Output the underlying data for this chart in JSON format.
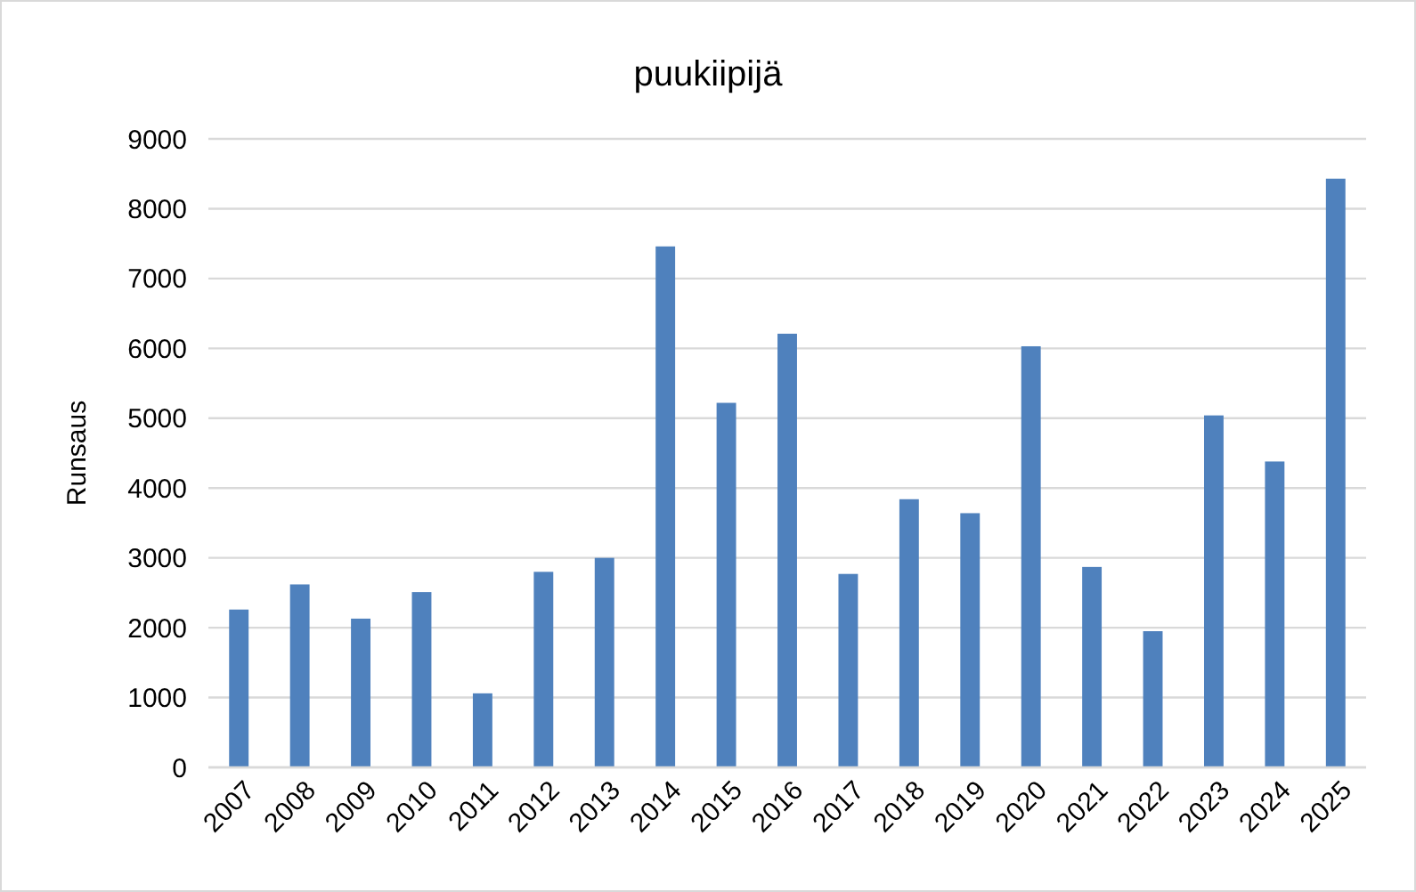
{
  "chart_data": {
    "type": "bar",
    "title": "puukiipijä",
    "ylabel": "Runsaus",
    "categories": [
      "2007",
      "2008",
      "2009",
      "2010",
      "2011",
      "2012",
      "2013",
      "2014",
      "2015",
      "2016",
      "2017",
      "2018",
      "2019",
      "2020",
      "2021",
      "2022",
      "2023",
      "2024",
      "2025"
    ],
    "values": [
      2260,
      2620,
      2130,
      2510,
      1060,
      2800,
      3000,
      7460,
      5220,
      6210,
      2770,
      3840,
      3640,
      6030,
      2870,
      1950,
      5040,
      4380,
      8430
    ],
    "color": "#4f81bd",
    "ylim": [
      0,
      9000
    ],
    "yticks": [
      0,
      1000,
      2000,
      3000,
      4000,
      5000,
      6000,
      7000,
      8000,
      9000
    ],
    "grid": "y"
  }
}
